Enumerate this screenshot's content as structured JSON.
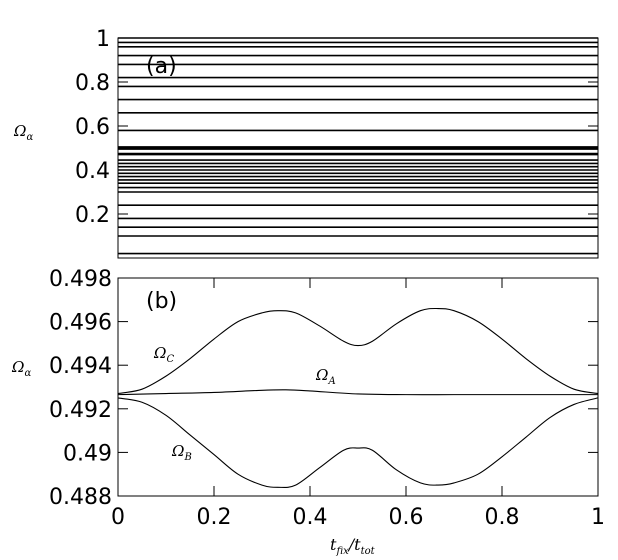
{
  "chart_data": [
    {
      "panel": "(a)",
      "type": "line",
      "ylabel": {
        "symbol": "Ω",
        "sub": "α"
      },
      "ylim": [
        0,
        1
      ],
      "xlim": [
        0,
        1
      ],
      "yticks": [
        "0.2",
        "0.4",
        "0.6",
        "0.8",
        "1"
      ],
      "ytick_values": [
        0.2,
        0.4,
        0.6,
        0.8,
        1.0
      ],
      "series_description": "many approximately constant Ω_α levels vs t_fix/t_tot",
      "levels": [
        0.02,
        0.1,
        0.14,
        0.18,
        0.24,
        0.3,
        0.32,
        0.34,
        0.355,
        0.37,
        0.385,
        0.4,
        0.415,
        0.43,
        0.445,
        0.47,
        0.475,
        0.495,
        0.505,
        0.5,
        0.58,
        0.66,
        0.72,
        0.78,
        0.82,
        0.88,
        0.92,
        0.96,
        0.98,
        1.0
      ]
    },
    {
      "panel": "(b)",
      "type": "line",
      "ylabel": {
        "symbol": "Ω",
        "sub": "α"
      },
      "xlabel": {
        "base": "t",
        "sub1": "fix",
        "mid": "/t",
        "sub2": "tot"
      },
      "xlim": [
        0,
        1
      ],
      "ylim": [
        0.488,
        0.498
      ],
      "xticks": [
        "0",
        "0.2",
        "0.4",
        "0.6",
        "0.8",
        "1"
      ],
      "xtick_values": [
        0,
        0.2,
        0.4,
        0.6,
        0.8,
        1.0
      ],
      "yticks": [
        "0.488",
        "0.49",
        "0.492",
        "0.494",
        "0.496",
        "0.498"
      ],
      "ytick_values": [
        0.488,
        0.49,
        0.492,
        0.494,
        0.496,
        0.498
      ],
      "series": [
        {
          "label": {
            "symbol": "Ω",
            "sub": "C"
          },
          "x": [
            0,
            0.05,
            0.1,
            0.15,
            0.2,
            0.25,
            0.3,
            0.333,
            0.37,
            0.42,
            0.47,
            0.5,
            0.53,
            0.58,
            0.63,
            0.667,
            0.7,
            0.75,
            0.8,
            0.85,
            0.9,
            0.95,
            1.0
          ],
          "y": [
            0.4927,
            0.4929,
            0.4935,
            0.4943,
            0.4952,
            0.496,
            0.4964,
            0.4965,
            0.4964,
            0.4958,
            0.4951,
            0.4949,
            0.4951,
            0.4959,
            0.4965,
            0.4966,
            0.4965,
            0.496,
            0.4952,
            0.4943,
            0.4935,
            0.4929,
            0.4927
          ]
        },
        {
          "label": {
            "symbol": "Ω",
            "sub": "A"
          },
          "x": [
            0,
            0.1,
            0.2,
            0.3,
            0.35,
            0.4,
            0.5,
            0.6,
            0.7,
            0.8,
            0.9,
            1.0
          ],
          "y": [
            0.49265,
            0.4927,
            0.49275,
            0.49285,
            0.49287,
            0.49282,
            0.49268,
            0.49265,
            0.49265,
            0.49265,
            0.49265,
            0.49265
          ]
        },
        {
          "label": {
            "symbol": "Ω",
            "sub": "B"
          },
          "x": [
            0,
            0.05,
            0.1,
            0.15,
            0.2,
            0.25,
            0.3,
            0.333,
            0.37,
            0.42,
            0.47,
            0.5,
            0.53,
            0.58,
            0.63,
            0.667,
            0.7,
            0.75,
            0.8,
            0.85,
            0.9,
            0.95,
            1.0
          ],
          "y": [
            0.4925,
            0.4923,
            0.4917,
            0.4908,
            0.4899,
            0.489,
            0.4885,
            0.4884,
            0.4885,
            0.4893,
            0.4901,
            0.4902,
            0.4901,
            0.4892,
            0.4886,
            0.4885,
            0.4886,
            0.489,
            0.4898,
            0.4907,
            0.4916,
            0.4922,
            0.4925
          ]
        }
      ]
    }
  ]
}
